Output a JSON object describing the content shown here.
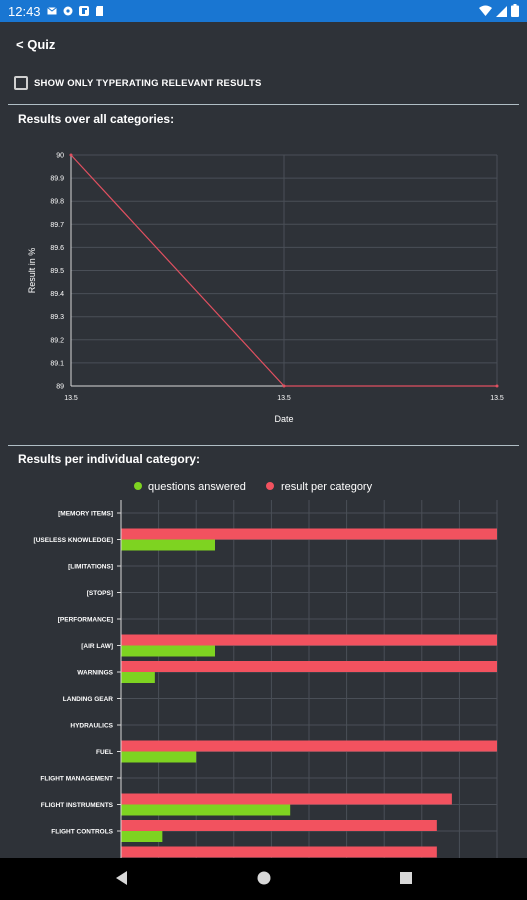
{
  "status_bar": {
    "time": "12:43",
    "icons": [
      "mail-icon",
      "settings-icon",
      "flipboard-icon",
      "sd-card-icon"
    ],
    "right_icons": [
      "wifi-icon",
      "signal-icon",
      "battery-icon"
    ]
  },
  "header": {
    "back_label": "< Quiz"
  },
  "filter": {
    "label": "SHOW ONLY TYPERATING RELEVANT RESULTS",
    "checked": false
  },
  "sections": {
    "overall_title": "Results over all categories:",
    "category_title": "Results per individual category:"
  },
  "colors": {
    "background": "#2e3238",
    "status_bar": "#1976d2",
    "line": "#e05060",
    "questions_answered": "#7ed321",
    "result_per_category": "#f2525f"
  },
  "chart_data": [
    {
      "type": "line",
      "title": "",
      "xlabel": "Date",
      "ylabel": "Result in %",
      "x": [
        "13.5",
        "13.5",
        "13.5"
      ],
      "y_ticks": [
        "89",
        "89.1",
        "89.2",
        "89.3",
        "89.4",
        "89.5",
        "89.6",
        "89.7",
        "89.8",
        "89.9",
        "90"
      ],
      "ylim": [
        89,
        90
      ],
      "series": [
        {
          "values": [
            90,
            89,
            89
          ]
        }
      ],
      "grid": true
    },
    {
      "type": "bar",
      "orientation": "horizontal",
      "legend_position": "top",
      "categories": [
        "[MEMORY ITEMS]",
        "[USELESS KNOWLEDGE]",
        "[LIMITATIONS]",
        "[STOPS]",
        "[PERFORMANCE]",
        "[AIR LAW]",
        "WARNINGS",
        "LANDING GEAR",
        "HYDRAULICS",
        "FUEL",
        "FLIGHT MANAGEMENT",
        "FLIGHT INSTRUMENTS",
        "FLIGHT CONTROLS"
      ],
      "series": [
        {
          "name": "questions answered",
          "values": [
            0,
            25,
            0,
            0,
            0,
            25,
            9,
            0,
            0,
            20,
            0,
            45,
            11
          ]
        },
        {
          "name": "result per category",
          "values": [
            0,
            100,
            0,
            0,
            0,
            100,
            100,
            0,
            0,
            100,
            0,
            88,
            84
          ]
        }
      ],
      "partial_next_bar": 84,
      "xlim": [
        0,
        100
      ],
      "grid": true
    }
  ]
}
